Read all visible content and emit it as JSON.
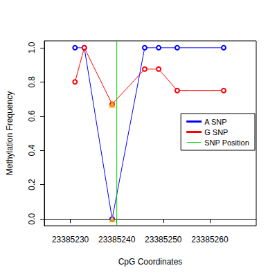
{
  "chart_data": {
    "type": "line",
    "x_label": "CpG Coordinates",
    "y_label": "Methylation Frequency",
    "x": [
      23385231,
      23385233,
      23385239,
      23385246,
      23385249,
      23385253,
      23385263
    ],
    "series": [
      {
        "name": "A SNP",
        "color": "#0000ff",
        "marker": "circle",
        "values": [
          1.0,
          1.0,
          0.0,
          1.0,
          1.0,
          1.0,
          1.0
        ]
      },
      {
        "name": "G SNP",
        "color": "#ff0000",
        "marker": "circle",
        "values": [
          0.8,
          1.0,
          0.67,
          0.875,
          0.875,
          0.75,
          0.75
        ]
      }
    ],
    "snp_position": {
      "name": "SNP Position",
      "color": "#00cc00",
      "x": 23385240
    },
    "highlight": {
      "x": 23385239,
      "color": "#ffa500",
      "marker": "triangle"
    },
    "xlim": [
      23385224.4,
      23385270
    ],
    "xticks": [
      23385230,
      23385240,
      23385250,
      23385260
    ],
    "ylim": [
      -0.04,
      1.04
    ],
    "yticks": [
      {
        "value": 0,
        "label": "0.0"
      },
      {
        "value": 0.2,
        "label": "0.2"
      },
      {
        "value": 0.4,
        "label": "0.4"
      },
      {
        "value": 0.6,
        "label": "0.6"
      },
      {
        "value": 0.8,
        "label": "0.8"
      },
      {
        "value": 1,
        "label": "1.0"
      }
    ],
    "legend": "right",
    "grid": false
  }
}
